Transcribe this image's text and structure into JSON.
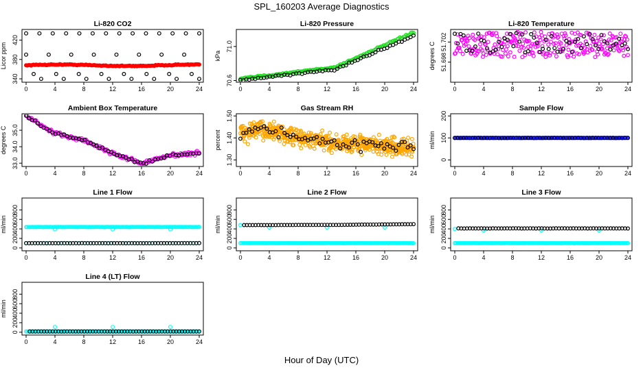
{
  "figure_title": "SPL_160203  Average Diagnostics",
  "x_axis_label": "Hour of Day (UTC)",
  "chart_data": [
    {
      "type": "scatter",
      "title": "Li-820 CO2",
      "ylabel": "Licor ppm",
      "xlim": [
        0,
        24
      ],
      "ylim": [
        333,
        442
      ],
      "xticks": [
        "0",
        "4",
        "8",
        "12",
        "16",
        "20",
        "24"
      ],
      "yticks": [
        "340",
        "380",
        "420"
      ],
      "series": [
        {
          "style": "red",
          "color": "#ff0000",
          "pattern": "flat",
          "base": 368,
          "amp": 1.5,
          "noise": 1,
          "n": 140,
          "x0": 0,
          "x1": 24,
          "filled": true
        },
        {
          "style": "black-top",
          "color": "#000000",
          "pattern": "discrete",
          "levels": [
            434
          ],
          "n": 14,
          "x0": 0,
          "x1": 24
        },
        {
          "style": "black-mid",
          "color": "#000000",
          "pattern": "discrete",
          "levels": [
            390,
            350,
            340
          ],
          "n": 24,
          "x0": 0,
          "x1": 24
        }
      ]
    },
    {
      "type": "scatter",
      "title": "Li-820 Pressure",
      "ylabel": "kPa",
      "xlim": [
        0,
        24
      ],
      "ylim": [
        70.58,
        71.2
      ],
      "xticks": [
        "0",
        "4",
        "8",
        "12",
        "16",
        "20",
        "24"
      ],
      "yticks": [
        "70.6",
        "71.0"
      ],
      "series": [
        {
          "style": "green",
          "color": "#22dd22",
          "pattern": "rise",
          "start": 70.62,
          "end": 71.17,
          "noise": 0.01,
          "n": 140,
          "x0": 0,
          "x1": 24
        },
        {
          "style": "black",
          "color": "#000000",
          "pattern": "rise",
          "start": 70.6,
          "end": 71.13,
          "noise": 0.01,
          "n": 60,
          "x0": 0,
          "x1": 24
        }
      ]
    },
    {
      "type": "scatter",
      "title": "Li-820 Temperature",
      "ylabel": "degrees C",
      "xlim": [
        0,
        24
      ],
      "ylim": [
        51.694,
        51.7045
      ],
      "xticks": [
        "0",
        "4",
        "8",
        "12",
        "16",
        "20",
        "24"
      ],
      "yticks": [
        "51.698",
        "51.702"
      ],
      "series": [
        {
          "style": "magenta",
          "color": "#ff00ff",
          "pattern": "band",
          "center": 51.7015,
          "spread": 0.0025,
          "n": 260,
          "x0": 0,
          "x1": 24
        },
        {
          "style": "black",
          "color": "#000000",
          "pattern": "band",
          "center": 51.7018,
          "spread": 0.002,
          "n": 60,
          "x0": 0,
          "x1": 24
        }
      ]
    },
    {
      "type": "scatter",
      "title": "Ambient Box Temperature",
      "ylabel": "degrees C",
      "xlim": [
        0,
        24
      ],
      "ylim": [
        32.8,
        36.0
      ],
      "xticks": [
        "0",
        "4",
        "8",
        "12",
        "16",
        "20",
        "24"
      ],
      "yticks": [
        "33.0",
        "34.0",
        "35.0"
      ],
      "series": [
        {
          "style": "magenta",
          "color": "#ff00ff",
          "pattern": "curve",
          "points": [
            [
              0,
              35.9
            ],
            [
              2,
              35.3
            ],
            [
              4,
              34.8
            ],
            [
              8,
              34.4
            ],
            [
              12,
              33.6
            ],
            [
              16,
              33.0
            ],
            [
              18,
              33.2
            ],
            [
              20,
              33.5
            ],
            [
              24,
              33.6
            ]
          ],
          "noise": 0.12,
          "n": 160,
          "x0": 0,
          "x1": 24
        },
        {
          "style": "black",
          "color": "#000000",
          "pattern": "curve",
          "points": [
            [
              0,
              35.9
            ],
            [
              2,
              35.3
            ],
            [
              4,
              34.8
            ],
            [
              8,
              34.4
            ],
            [
              12,
              33.6
            ],
            [
              16,
              33.0
            ],
            [
              18,
              33.2
            ],
            [
              20,
              33.5
            ],
            [
              24,
              33.6
            ]
          ],
          "noise": 0.08,
          "n": 60,
          "x0": 0,
          "x1": 24
        }
      ]
    },
    {
      "type": "scatter",
      "title": "Gas Stream RH",
      "ylabel": "percent",
      "xlim": [
        0,
        24
      ],
      "ylim": [
        1.27,
        1.51
      ],
      "xticks": [
        "0",
        "4",
        "8",
        "12",
        "16",
        "20",
        "24"
      ],
      "yticks": [
        "1.30",
        "1.40",
        "1.50"
      ],
      "series": [
        {
          "style": "orange",
          "color": "#ffa500",
          "pattern": "curve",
          "points": [
            [
              0,
              1.42
            ],
            [
              3,
              1.44
            ],
            [
              8,
              1.4
            ],
            [
              12,
              1.38
            ],
            [
              18,
              1.37
            ],
            [
              24,
              1.35
            ]
          ],
          "noise": 0.04,
          "n": 600,
          "x0": 0,
          "x1": 24
        },
        {
          "style": "black",
          "color": "#000000",
          "pattern": "curve",
          "points": [
            [
              0,
              1.42
            ],
            [
              3,
              1.45
            ],
            [
              8,
              1.4
            ],
            [
              12,
              1.38
            ],
            [
              18,
              1.37
            ],
            [
              24,
              1.36
            ]
          ],
          "noise": 0.025,
          "n": 60,
          "x0": 0,
          "x1": 24
        }
      ]
    },
    {
      "type": "scatter",
      "title": "Sample Flow",
      "ylabel": "ml/min",
      "xlim": [
        0,
        24
      ],
      "ylim": [
        -30,
        210
      ],
      "xticks": [
        "0",
        "4",
        "8",
        "12",
        "16",
        "20",
        "24"
      ],
      "yticks": [
        "0",
        "100",
        "200"
      ],
      "series": [
        {
          "style": "blue",
          "color": "#0000ff",
          "pattern": "flat",
          "base": 100,
          "amp": 0,
          "noise": 0.5,
          "n": 160,
          "x0": 0,
          "x1": 24
        },
        {
          "style": "black",
          "color": "#000000",
          "pattern": "flat",
          "base": 100,
          "amp": 0,
          "noise": 0.5,
          "n": 60,
          "x0": 0,
          "x1": 24
        }
      ]
    },
    {
      "type": "scatter",
      "title": "Line 1 Flow",
      "ylabel": "ml/min",
      "xlim": [
        0,
        24
      ],
      "ylim": [
        -60,
        1050
      ],
      "xticks": [
        "0",
        "4",
        "8",
        "12",
        "16",
        "20",
        "24"
      ],
      "yticks": [
        "0",
        "200",
        "400",
        "600",
        "800"
      ],
      "series": [
        {
          "style": "cyan",
          "color": "#00ffff",
          "pattern": "flat",
          "base": 440,
          "amp": 0,
          "noise": 2,
          "n": 140,
          "x0": 0,
          "x1": 24,
          "spikes": [
            [
              4,
              390
            ],
            [
              12,
              390
            ],
            [
              20,
              390
            ]
          ]
        },
        {
          "style": "cyan-low",
          "color": "#00ffff",
          "pattern": "flat",
          "base": 100,
          "amp": 0,
          "noise": 1,
          "n": 60,
          "x0": 0,
          "x1": 24
        },
        {
          "style": "black",
          "color": "#000000",
          "pattern": "flat",
          "base": 100,
          "amp": 0,
          "noise": 1,
          "n": 60,
          "x0": 0,
          "x1": 24
        }
      ]
    },
    {
      "type": "scatter",
      "title": "Line 2 Flow",
      "ylabel": "ml/min",
      "xlim": [
        0,
        24
      ],
      "ylim": [
        -60,
        1050
      ],
      "xticks": [
        "0",
        "4",
        "8",
        "12",
        "16",
        "20",
        "24"
      ],
      "yticks": [
        "0",
        "200",
        "400",
        "600",
        "800"
      ],
      "series": [
        {
          "style": "cyan",
          "color": "#00ffff",
          "pattern": "flat",
          "base": 100,
          "amp": 0,
          "noise": 1,
          "n": 140,
          "x0": 0,
          "x1": 24,
          "spikes": [
            [
              0,
              480
            ],
            [
              4,
              430
            ],
            [
              12,
              430
            ],
            [
              20,
              430
            ]
          ]
        },
        {
          "style": "black",
          "color": "#000000",
          "pattern": "rise",
          "start": 480,
          "end": 500,
          "noise": 1,
          "n": 60,
          "x0": 0.5,
          "x1": 24
        }
      ]
    },
    {
      "type": "scatter",
      "title": "Line 3 Flow",
      "ylabel": "ml/min",
      "xlim": [
        0,
        24
      ],
      "ylim": [
        -60,
        1050
      ],
      "xticks": [
        "0",
        "4",
        "8",
        "12",
        "16",
        "20",
        "24"
      ],
      "yticks": [
        "0",
        "200",
        "400",
        "600",
        "800"
      ],
      "series": [
        {
          "style": "cyan",
          "color": "#00ffff",
          "pattern": "flat",
          "base": 100,
          "amp": 0,
          "noise": 1,
          "n": 140,
          "x0": 0,
          "x1": 24,
          "spikes": [
            [
              0,
              400
            ],
            [
              4,
              370
            ],
            [
              12,
              370
            ],
            [
              20,
              370
            ]
          ]
        },
        {
          "style": "black",
          "color": "#000000",
          "pattern": "flat",
          "base": 410,
          "amp": 0,
          "noise": 2,
          "n": 60,
          "x0": 0.5,
          "x1": 24
        }
      ]
    },
    {
      "type": "scatter",
      "title": "Line 4 (LT) Flow",
      "ylabel": "ml/min",
      "xlim": [
        0,
        24
      ],
      "ylim": [
        -60,
        1050
      ],
      "xticks": [
        "0",
        "4",
        "8",
        "12",
        "16",
        "20",
        "24"
      ],
      "yticks": [
        "0",
        "200",
        "400",
        "600",
        "800"
      ],
      "series": [
        {
          "style": "cyan",
          "color": "#00ffff",
          "pattern": "flat",
          "base": 15,
          "amp": 0,
          "noise": 1,
          "n": 140,
          "x0": 0,
          "x1": 24,
          "spikes": [
            [
              4,
              110
            ],
            [
              12,
              110
            ],
            [
              20,
              110
            ]
          ]
        },
        {
          "style": "black",
          "color": "#000000",
          "pattern": "flat",
          "base": 15,
          "amp": 0,
          "noise": 1,
          "n": 60,
          "x0": 0.5,
          "x1": 24
        }
      ]
    }
  ]
}
